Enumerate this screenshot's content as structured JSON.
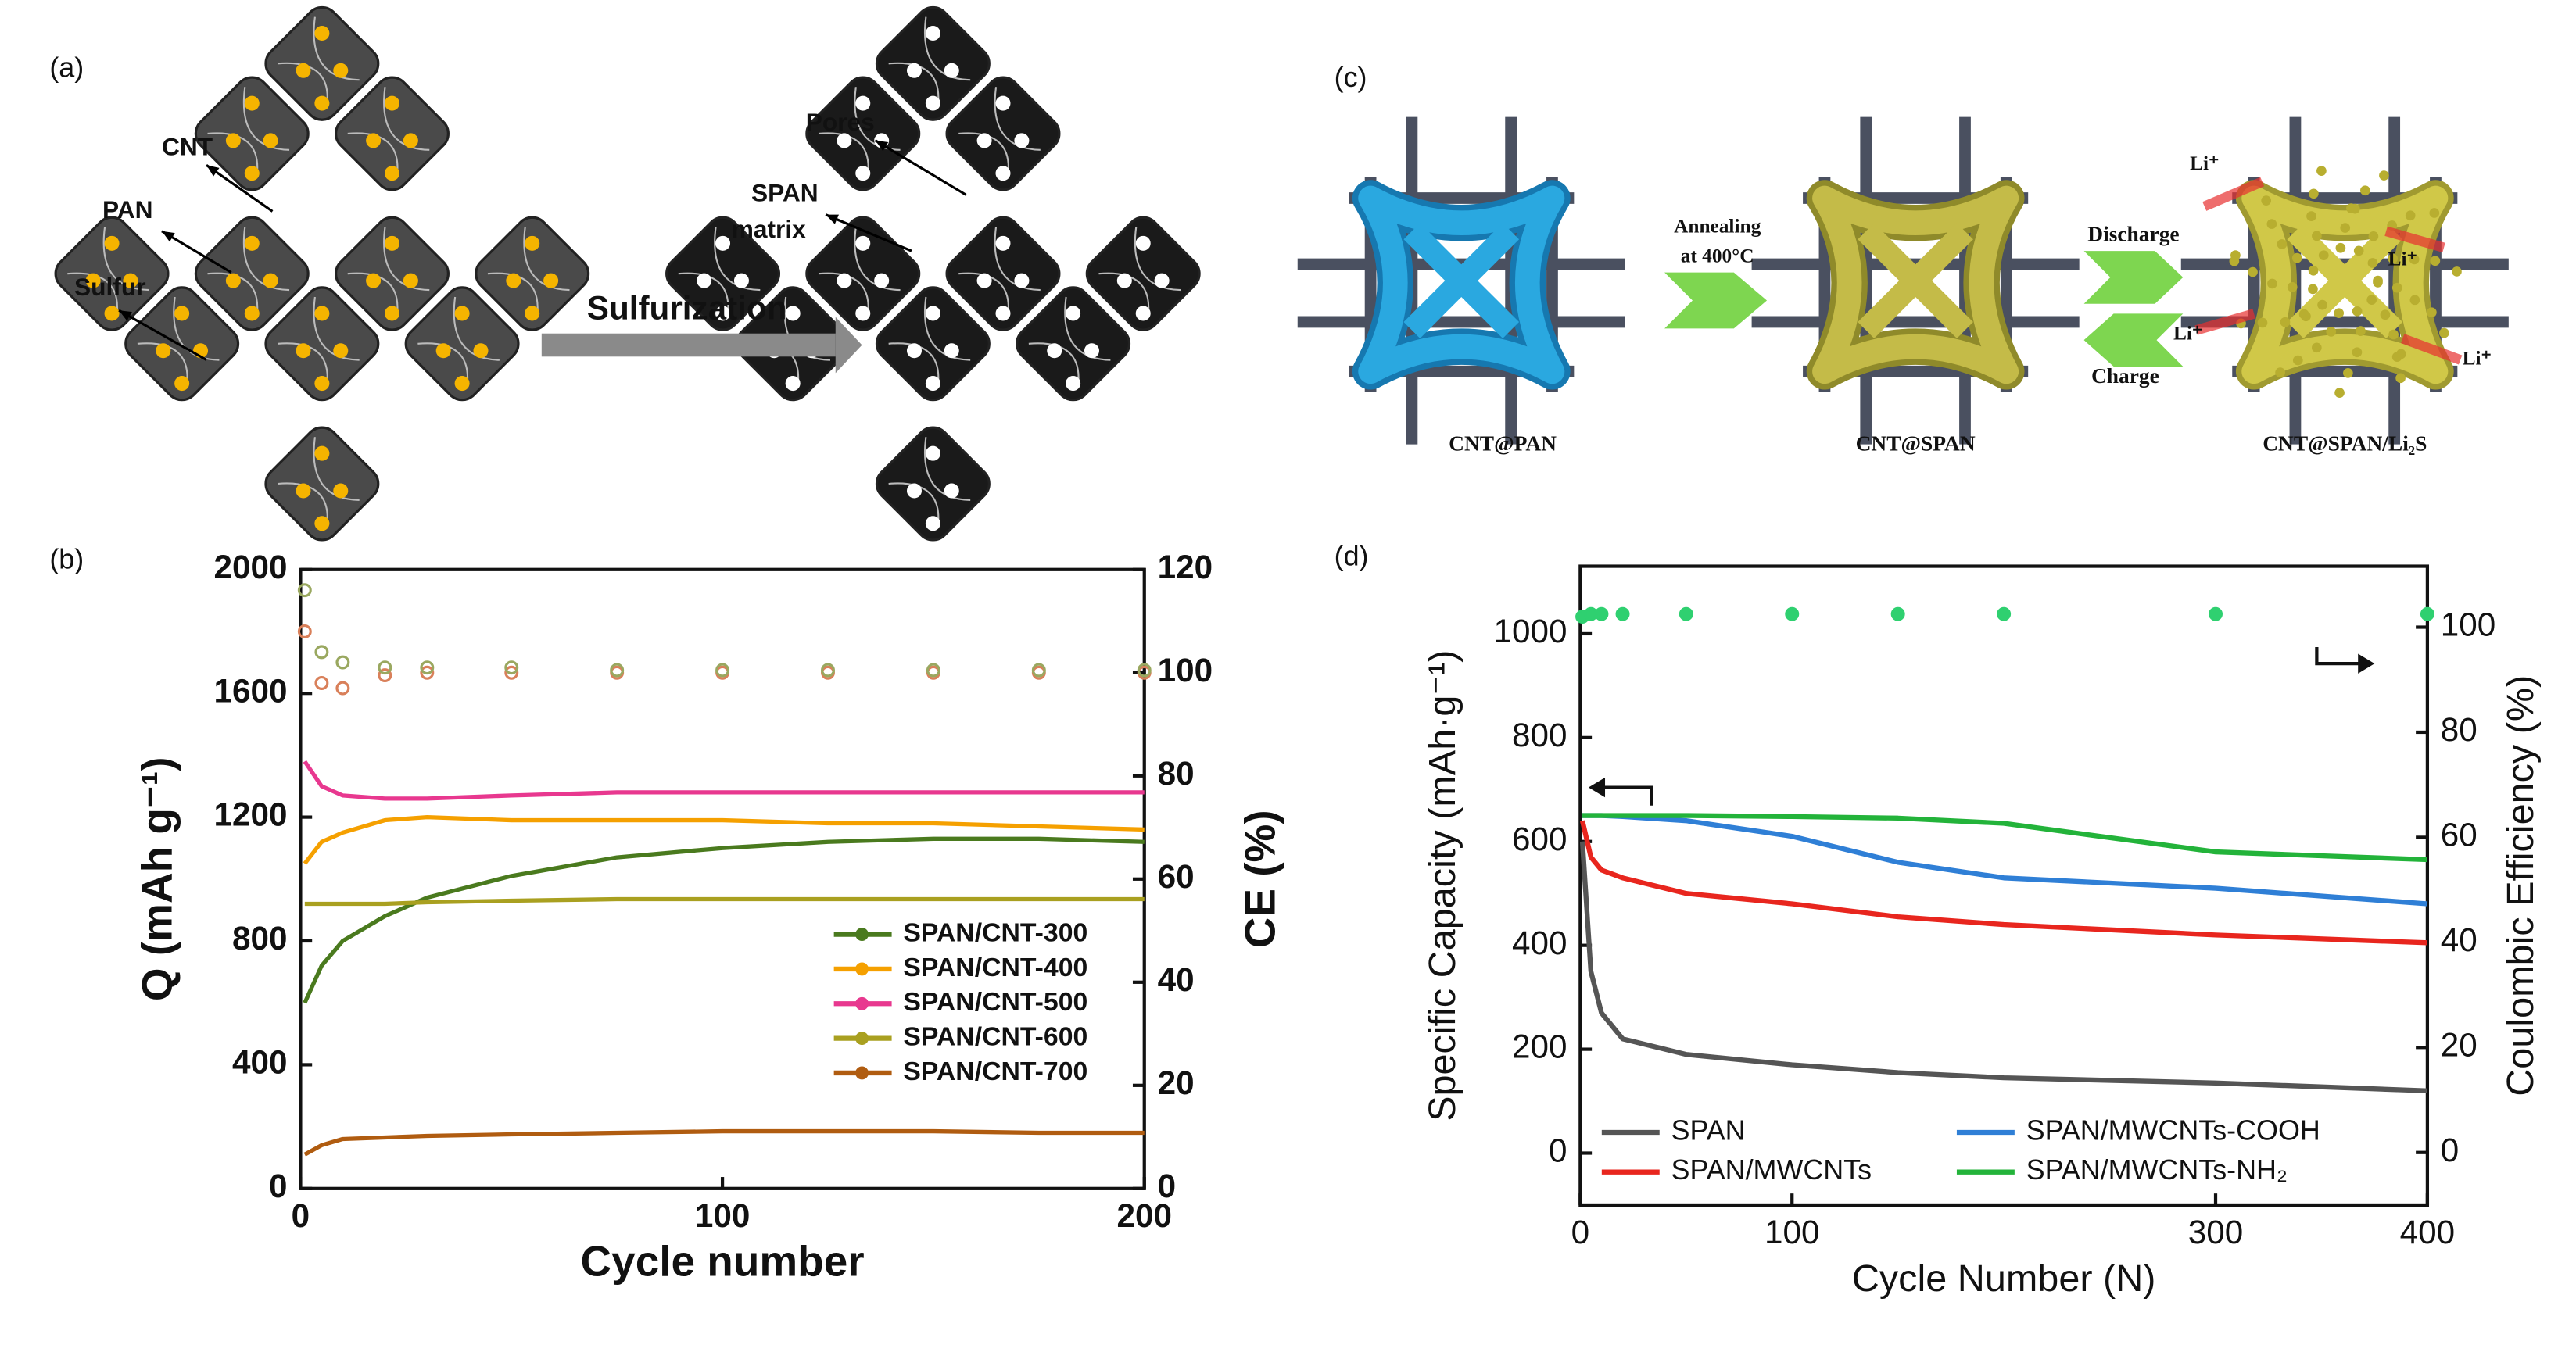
{
  "diagrams": {
    "a": {
      "label": "(a)",
      "cnt": "CNT",
      "pan": "PAN",
      "sulfur": "Sulfur",
      "process": "Sulfurization",
      "pores": "Pores",
      "matrix": [
        "SPAN",
        "matrix"
      ]
    },
    "c": {
      "label": "(c)",
      "annealing": [
        "Annealing",
        "at 400°C"
      ],
      "discharge": "Discharge",
      "charge": "Charge",
      "li": [
        "Li⁺",
        "Li⁺",
        "Li⁺",
        "Li⁺"
      ],
      "names": [
        "CNT@PAN",
        "CNT@SPAN",
        "CNT@SPAN/Li₂S"
      ]
    }
  },
  "chart_data": [
    {
      "type": "line",
      "label": "(b)",
      "x_label": "Cycle number",
      "y_label": "Q (mAh g⁻¹)",
      "y2_label": "CE (%)",
      "x": [
        1,
        5,
        10,
        20,
        30,
        50,
        75,
        100,
        125,
        150,
        175,
        200
      ],
      "xlim": [
        0,
        200
      ],
      "xticks": [
        0,
        100,
        200
      ],
      "ylim": [
        0,
        2000
      ],
      "yticks": [
        0,
        400,
        800,
        1200,
        1600,
        2000
      ],
      "y2lim": [
        0,
        120
      ],
      "y2ticks": [
        0,
        20,
        40,
        60,
        80,
        100,
        120
      ],
      "legend": "lower right",
      "series": [
        {
          "name": "SPAN/CNT-300",
          "color": "#4a7a1e",
          "values": [
            600,
            720,
            800,
            880,
            940,
            1010,
            1070,
            1100,
            1120,
            1130,
            1130,
            1120
          ]
        },
        {
          "name": "SPAN/CNT-400",
          "color": "#f5a000",
          "values": [
            1050,
            1120,
            1150,
            1190,
            1200,
            1190,
            1190,
            1190,
            1180,
            1180,
            1170,
            1160
          ]
        },
        {
          "name": "SPAN/CNT-500",
          "color": "#e8388f",
          "values": [
            1380,
            1300,
            1270,
            1260,
            1260,
            1270,
            1280,
            1280,
            1280,
            1280,
            1280,
            1280
          ]
        },
        {
          "name": "SPAN/CNT-600",
          "color": "#a9a020",
          "values": [
            920,
            920,
            920,
            920,
            925,
            930,
            935,
            935,
            935,
            935,
            935,
            935
          ]
        },
        {
          "name": "SPAN/CNT-700",
          "color": "#b05c10",
          "values": [
            110,
            140,
            160,
            165,
            170,
            175,
            180,
            185,
            185,
            185,
            180,
            180
          ]
        },
        {
          "type": "scatter",
          "axis": "y2",
          "color": "#d9805a",
          "values": [
            108,
            98,
            97,
            99.5,
            100,
            100,
            100,
            100,
            100,
            100,
            100,
            100
          ]
        },
        {
          "type": "scatter",
          "axis": "y2",
          "color": "#9aa860",
          "values": [
            116,
            104,
            102,
            101,
            101,
            101,
            100.5,
            100.5,
            100.5,
            100.5,
            100.5,
            100.5
          ]
        }
      ]
    },
    {
      "type": "line",
      "label": "(d)",
      "x_label": "Cycle Number (N)",
      "y_label": "Specific Capacity (mAh·g⁻¹)",
      "y2_label": "Coulombic Efficiency (%)",
      "x": [
        1,
        5,
        10,
        20,
        50,
        100,
        150,
        200,
        300,
        400
      ],
      "xlim": [
        0,
        400
      ],
      "xticks": [
        0,
        100,
        300,
        400
      ],
      "ylim": [
        -100,
        1130
      ],
      "yticks": [
        0,
        200,
        400,
        600,
        800,
        1000
      ],
      "y2lim": [
        -10,
        111.6
      ],
      "y2ticks": [
        0,
        20,
        40,
        60,
        80,
        100
      ],
      "legend": "lower center",
      "series": [
        {
          "name": "SPAN",
          "color": "#555555",
          "values": [
            600,
            350,
            270,
            220,
            190,
            170,
            155,
            145,
            135,
            120
          ]
        },
        {
          "name": "SPAN/MWCNTs",
          "color": "#e8261e",
          "values": [
            640,
            570,
            545,
            530,
            500,
            480,
            455,
            440,
            420,
            405
          ]
        },
        {
          "name": "SPAN/MWCNTs-COOH",
          "color": "#2f7fd6",
          "values": [
            650,
            650,
            650,
            648,
            640,
            610,
            560,
            530,
            510,
            480
          ]
        },
        {
          "name": "SPAN/MWCNTs-NH₂",
          "color": "#23b33a",
          "values": [
            650,
            650,
            650,
            650,
            650,
            648,
            645,
            635,
            580,
            565
          ]
        },
        {
          "type": "scatter",
          "axis": "y2",
          "color": "#2fd070",
          "values": [
            102,
            102.5,
            102.5,
            102.5,
            102.5,
            102.5,
            102.5,
            102.5,
            102.5,
            102.5
          ]
        }
      ]
    }
  ]
}
